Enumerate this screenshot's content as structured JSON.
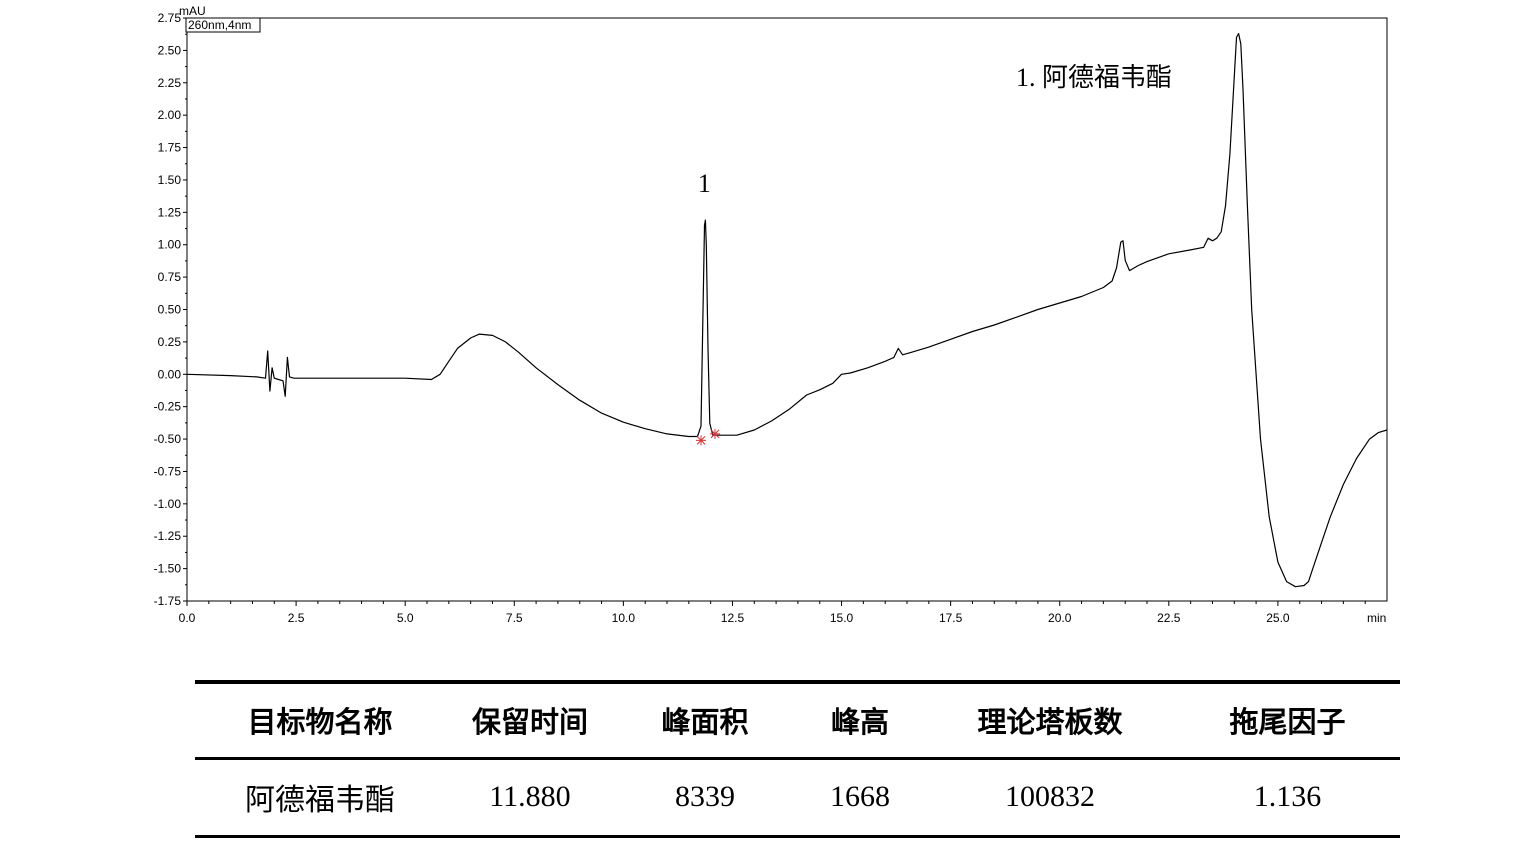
{
  "chart_data": {
    "type": "line",
    "detector_label": "260nm,4nm",
    "y_unit": "mAU",
    "x_unit": "min",
    "xlim": [
      0,
      27.5
    ],
    "ylim": [
      -1.75,
      2.75
    ],
    "x_ticks": [
      "0.0",
      "2.5",
      "5.0",
      "7.5",
      "10.0",
      "12.5",
      "15.0",
      "17.5",
      "20.0",
      "22.5",
      "25.0"
    ],
    "y_ticks": [
      "2.75",
      "2.50",
      "2.25",
      "2.00",
      "1.75",
      "1.50",
      "1.25",
      "1.00",
      "0.75",
      "0.50",
      "0.25",
      "0.00",
      "-0.25",
      "-0.50",
      "-0.75",
      "-1.00",
      "-1.25",
      "-1.50",
      "-1.75"
    ],
    "y_tick_values": [
      2.75,
      2.5,
      2.25,
      2.0,
      1.75,
      1.5,
      1.25,
      1.0,
      0.75,
      0.5,
      0.25,
      0.0,
      -0.25,
      -0.5,
      -0.75,
      -1.0,
      -1.25,
      -1.5,
      -1.75
    ],
    "x_tick_values": [
      0,
      2.5,
      5,
      7.5,
      10,
      12.5,
      15,
      17.5,
      20,
      22.5,
      25
    ],
    "peak_label": "1",
    "peak_label_x": 11.88,
    "legend_label": "1. 阿德福韦酯",
    "integration_marks": [
      [
        11.78,
        -0.51
      ],
      [
        12.1,
        -0.46
      ]
    ],
    "series": [
      {
        "x": [
          0.0,
          1.0,
          1.6,
          1.8,
          1.85,
          1.9,
          1.95,
          2.0,
          2.1,
          2.2,
          2.25,
          2.3,
          2.35,
          2.45,
          2.6,
          3.0,
          4.0,
          5.0,
          5.6,
          5.8,
          6.0,
          6.2,
          6.5,
          6.7,
          7.0,
          7.3,
          7.6,
          8.0,
          8.5,
          9.0,
          9.5,
          10.0,
          10.5,
          11.0,
          11.5,
          11.7,
          11.78,
          11.82,
          11.86,
          11.88,
          11.9,
          11.94,
          11.98,
          12.05,
          12.2,
          12.6,
          13.0,
          13.4,
          13.8,
          14.2,
          14.5,
          14.8,
          15.0,
          15.2,
          15.6,
          16.0,
          16.2,
          16.3,
          16.4,
          16.6,
          17.0,
          17.5,
          18.0,
          18.5,
          19.0,
          19.5,
          20.0,
          20.5,
          21.0,
          21.2,
          21.3,
          21.4,
          21.45,
          21.5,
          21.6,
          21.8,
          22.0,
          22.5,
          23.0,
          23.3,
          23.4,
          23.5,
          23.6,
          23.7,
          23.8,
          23.9,
          24.0,
          24.05,
          24.1,
          24.15,
          24.2,
          24.3,
          24.4,
          24.6,
          24.8,
          25.0,
          25.2,
          25.4,
          25.6,
          25.7,
          25.8,
          26.0,
          26.2,
          26.5,
          26.8,
          27.1,
          27.3,
          27.5
        ],
        "y": [
          0.0,
          -0.01,
          -0.02,
          -0.03,
          0.18,
          -0.13,
          0.05,
          -0.03,
          -0.04,
          -0.05,
          -0.17,
          0.13,
          -0.02,
          -0.03,
          -0.03,
          -0.03,
          -0.03,
          -0.03,
          -0.04,
          0.0,
          0.1,
          0.2,
          0.28,
          0.31,
          0.3,
          0.25,
          0.17,
          0.05,
          -0.08,
          -0.2,
          -0.3,
          -0.37,
          -0.42,
          -0.46,
          -0.48,
          -0.48,
          -0.4,
          0.4,
          1.15,
          1.19,
          1.0,
          0.2,
          -0.38,
          -0.47,
          -0.47,
          -0.47,
          -0.43,
          -0.36,
          -0.27,
          -0.16,
          -0.12,
          -0.07,
          0.0,
          0.01,
          0.05,
          0.1,
          0.13,
          0.2,
          0.15,
          0.17,
          0.21,
          0.27,
          0.33,
          0.38,
          0.44,
          0.5,
          0.55,
          0.6,
          0.67,
          0.72,
          0.82,
          1.02,
          1.03,
          0.88,
          0.8,
          0.84,
          0.87,
          0.93,
          0.96,
          0.98,
          1.05,
          1.03,
          1.05,
          1.1,
          1.3,
          1.7,
          2.3,
          2.6,
          2.63,
          2.55,
          2.2,
          1.3,
          0.5,
          -0.5,
          -1.1,
          -1.45,
          -1.6,
          -1.64,
          -1.63,
          -1.6,
          -1.5,
          -1.3,
          -1.1,
          -0.85,
          -0.65,
          -0.5,
          -0.45,
          -0.43
        ]
      }
    ]
  },
  "table": {
    "headers": [
      "目标物名称",
      "保留时间",
      "峰面积",
      "峰高",
      "理论塔板数",
      "拖尾因子"
    ],
    "rows": [
      [
        "阿德福韦酯",
        "11.880",
        "8339",
        "1668",
        "100832",
        "1.136"
      ]
    ]
  }
}
